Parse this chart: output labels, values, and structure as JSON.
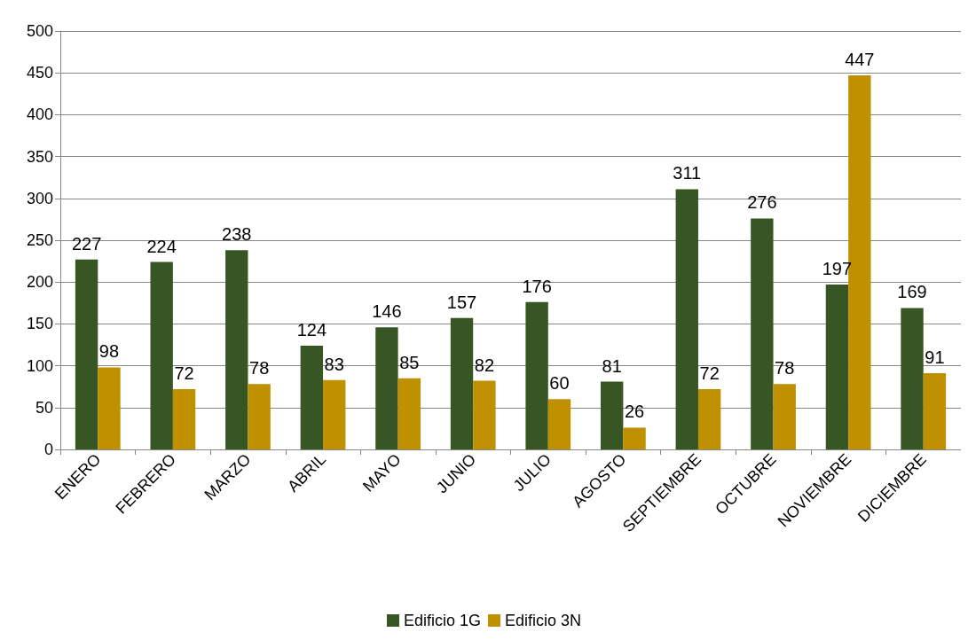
{
  "chart_data": {
    "type": "bar",
    "categories": [
      "ENERO",
      "FEBRERO",
      "MARZO",
      "ABRIL",
      "MAYO",
      "JUNIO",
      "JULIO",
      "AGOSTO",
      "SEPTIEMBRE",
      "OCTUBRE",
      "NOVIEMBRE",
      "DICIEMBRE"
    ],
    "series": [
      {
        "name": "Edificio 1G",
        "color": "#375623",
        "values": [
          227,
          224,
          238,
          124,
          146,
          157,
          176,
          81,
          311,
          276,
          197,
          169
        ]
      },
      {
        "name": "Edificio 3N",
        "color": "#bf9000",
        "values": [
          98,
          72,
          78,
          83,
          85,
          82,
          60,
          26,
          72,
          78,
          447,
          91
        ]
      }
    ],
    "ylim": [
      0,
      500
    ],
    "yticks": [
      0,
      50,
      100,
      150,
      200,
      250,
      300,
      350,
      400,
      450,
      500
    ],
    "grid": "y",
    "legend": "bottom",
    "data_labels": true
  }
}
